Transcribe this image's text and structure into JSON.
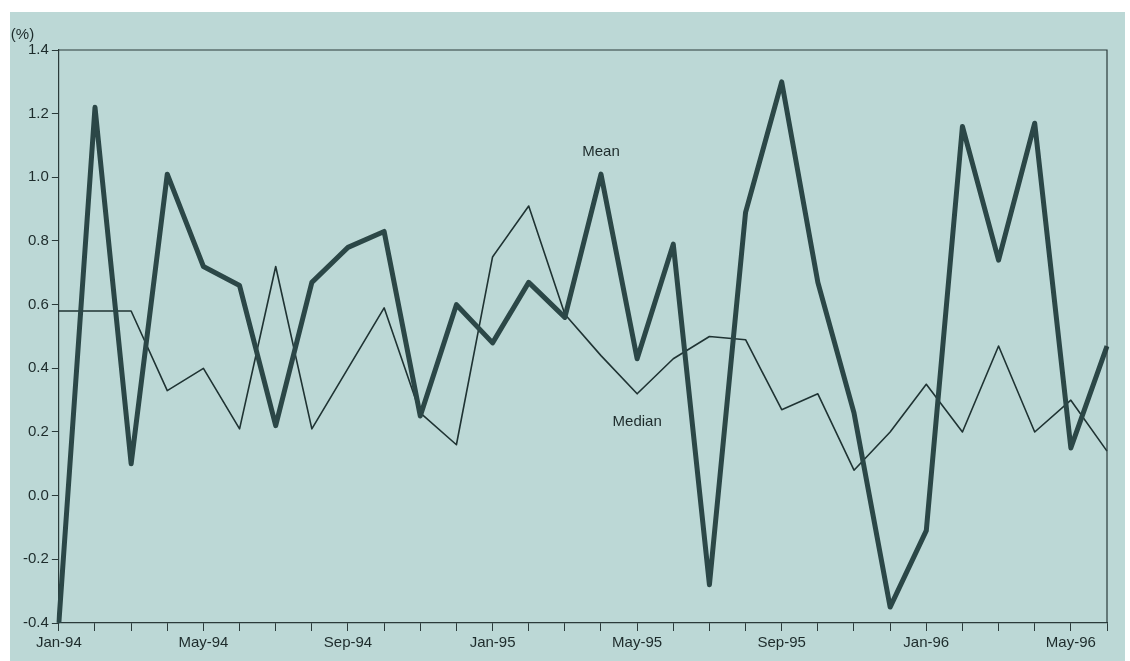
{
  "chart_data": {
    "type": "line",
    "ylabel": "(%)",
    "categories": [
      "Jan-94",
      null,
      null,
      null,
      "May-94",
      null,
      null,
      null,
      "Sep-94",
      null,
      null,
      null,
      "Jan-95",
      null,
      null,
      null,
      "May-95",
      null,
      null,
      null,
      "Sep-95",
      null,
      null,
      null,
      "Jan-96",
      null,
      null,
      null,
      "May-96",
      null
    ],
    "series": [
      {
        "name": "Mean",
        "color": "#2b4747",
        "values": [
          -0.4,
          1.22,
          0.1,
          1.01,
          0.72,
          0.66,
          0.22,
          0.67,
          0.78,
          0.83,
          0.25,
          0.6,
          0.48,
          0.67,
          0.56,
          1.01,
          0.43,
          0.79,
          -0.28,
          0.89,
          1.3,
          0.67,
          0.26,
          -0.35,
          -0.11,
          1.16,
          0.74,
          1.17,
          0.15,
          0.47
        ]
      },
      {
        "name": "Median",
        "color": "#1f3333",
        "values": [
          0.58,
          0.58,
          0.58,
          0.33,
          0.4,
          0.21,
          0.72,
          0.21,
          0.4,
          0.59,
          0.26,
          0.16,
          0.75,
          0.91,
          0.57,
          0.44,
          0.32,
          0.43,
          0.5,
          0.49,
          0.27,
          0.32,
          0.08,
          0.2,
          0.35,
          0.2,
          0.47,
          0.2,
          0.3,
          0.14
        ]
      }
    ],
    "ylim": [
      -0.4,
      1.4
    ],
    "yticks": [
      {
        "value": -0.4,
        "label": "-0.4"
      },
      {
        "value": -0.2,
        "label": "-0.2"
      },
      {
        "value": 0,
        "label": "0.0"
      },
      {
        "value": 0.2,
        "label": "0.2"
      },
      {
        "value": 0.4,
        "label": "0.4"
      },
      {
        "value": 0.6,
        "label": "0.6"
      },
      {
        "value": 0.8,
        "label": "0.8"
      },
      {
        "value": 1.0,
        "label": "1.0"
      },
      {
        "value": 1.2,
        "label": "1.2"
      },
      {
        "value": 1.4,
        "label": "1.4"
      }
    ],
    "grid": false,
    "legend": false,
    "marker": "none",
    "line_style": "solid"
  }
}
